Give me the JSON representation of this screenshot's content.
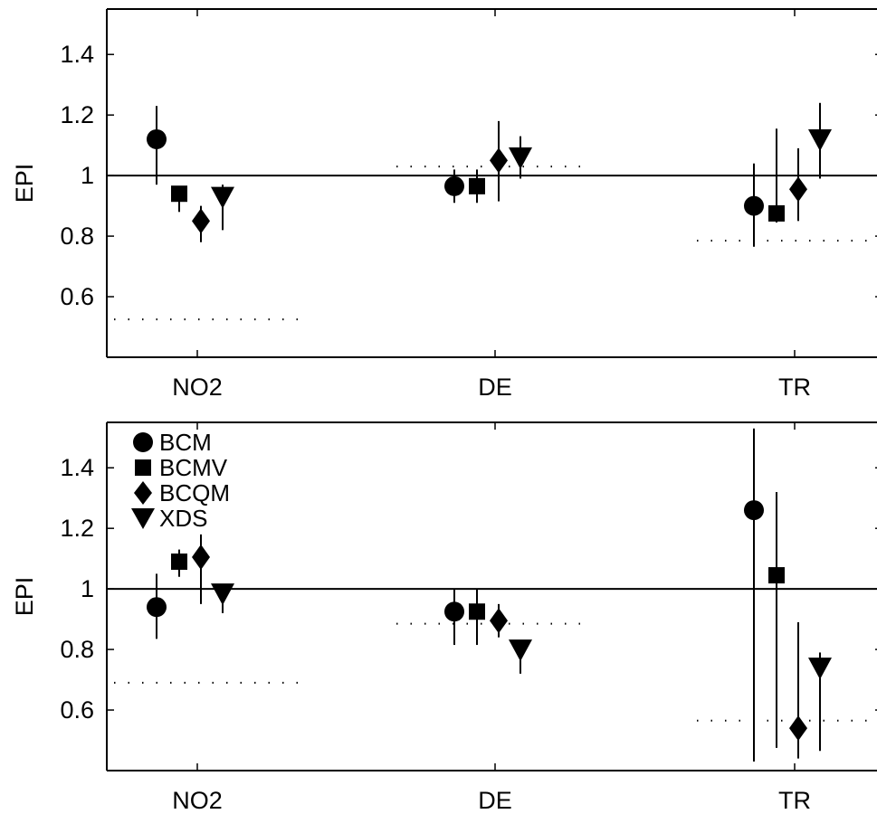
{
  "chart_data": [
    {
      "type": "scatter",
      "ylabel": "EPI",
      "categories": [
        "NO2",
        "DE",
        "TR"
      ],
      "yticks": [
        "0.6",
        "0.8",
        "1",
        "1.2",
        "1.4"
      ],
      "ylim": [
        0.4,
        1.55
      ],
      "reference_line": 1,
      "grid": false,
      "legend": false,
      "series": [
        {
          "name": "BCM",
          "marker": "circle",
          "values": [
            1.12,
            0.965,
            0.9
          ],
          "lower": [
            0.97,
            0.91,
            0.765
          ],
          "upper": [
            1.23,
            1.02,
            1.04
          ]
        },
        {
          "name": "BCMV",
          "marker": "square",
          "values": [
            0.94,
            0.965,
            0.875
          ],
          "lower": [
            0.88,
            0.91,
            0.845
          ],
          "upper": [
            0.965,
            1.02,
            1.155
          ]
        },
        {
          "name": "BCQM",
          "marker": "diamond",
          "values": [
            0.85,
            1.05,
            0.955
          ],
          "lower": [
            0.78,
            0.915,
            0.85
          ],
          "upper": [
            0.9,
            1.18,
            1.09
          ]
        },
        {
          "name": "XDS",
          "marker": "triangle",
          "values": [
            0.93,
            1.06,
            1.12
          ],
          "lower": [
            0.82,
            0.99,
            0.99
          ],
          "upper": [
            0.97,
            1.13,
            1.24
          ]
        }
      ],
      "dotted_levels": [
        0.525,
        1.03,
        0.785
      ]
    },
    {
      "type": "scatter",
      "ylabel": "EPI",
      "categories": [
        "NO2",
        "DE",
        "TR"
      ],
      "yticks": [
        "0.6",
        "0.8",
        "1",
        "1.2",
        "1.4"
      ],
      "ylim": [
        0.4,
        1.55
      ],
      "reference_line": 1,
      "grid": false,
      "legend": "top-left",
      "series": [
        {
          "name": "BCM",
          "marker": "circle",
          "values": [
            0.94,
            0.925,
            1.26
          ],
          "lower": [
            0.835,
            0.815,
            0.43
          ],
          "upper": [
            1.05,
            1.0,
            1.53
          ]
        },
        {
          "name": "BCMV",
          "marker": "square",
          "values": [
            1.09,
            0.925,
            1.045
          ],
          "lower": [
            1.04,
            0.815,
            0.475
          ],
          "upper": [
            1.13,
            1.0,
            1.32
          ]
        },
        {
          "name": "BCQM",
          "marker": "diamond",
          "values": [
            1.105,
            0.895,
            0.54
          ],
          "lower": [
            0.95,
            0.84,
            0.44
          ],
          "upper": [
            1.18,
            0.95,
            0.89
          ]
        },
        {
          "name": "XDS",
          "marker": "triangle",
          "values": [
            0.985,
            0.8,
            0.74
          ],
          "lower": [
            0.92,
            0.72,
            0.465
          ],
          "upper": [
            1.0,
            0.83,
            0.79
          ]
        }
      ],
      "dotted_levels": [
        0.69,
        0.885,
        0.565
      ]
    }
  ]
}
